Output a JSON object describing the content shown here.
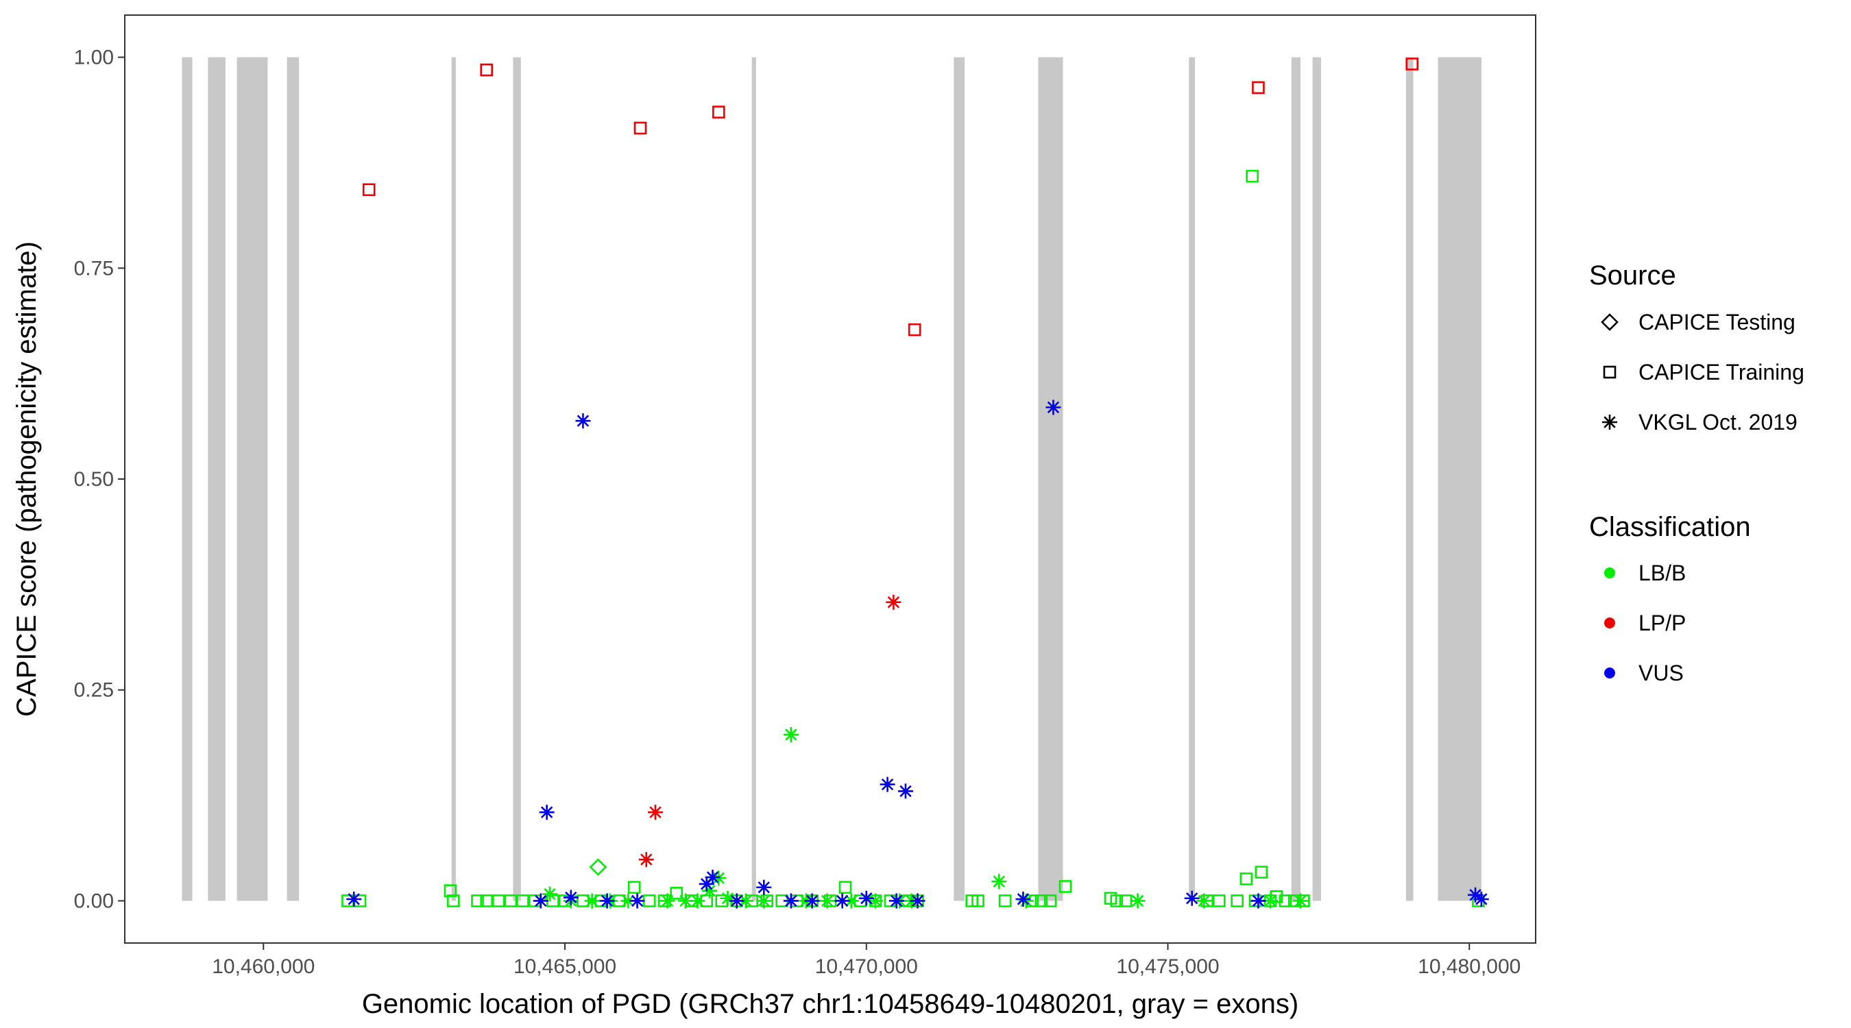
{
  "chart_data": {
    "type": "scatter",
    "xlabel": "Genomic location of PGD (GRCh37 chr1:10458649-10480201, gray = exons)",
    "ylabel": "CAPICE score (pathogenicity estimate)",
    "xlim": [
      10457700,
      10481100
    ],
    "ylim": [
      -0.05,
      1.05
    ],
    "x_ticks": [
      10460000,
      10465000,
      10470000,
      10475000,
      10480000
    ],
    "x_tick_labels": [
      "10,460,000",
      "10,465,000",
      "10,470,000",
      "10,475,000",
      "10,480,000"
    ],
    "y_ticks": [
      0,
      0.25,
      0.5,
      0.75,
      1.0
    ],
    "y_tick_labels": [
      "0.00",
      "0.25",
      "0.50",
      "0.75",
      "1.00"
    ],
    "grid": false,
    "legend_position": "right",
    "exons": [
      [
        10458649,
        10458820
      ],
      [
        10459080,
        10459370
      ],
      [
        10459560,
        10460070
      ],
      [
        10460390,
        10460590
      ],
      [
        10463120,
        10463190
      ],
      [
        10464140,
        10464270
      ],
      [
        10468100,
        10468170
      ],
      [
        10471450,
        10471630
      ],
      [
        10472850,
        10473260
      ],
      [
        10475350,
        10475450
      ],
      [
        10477050,
        10477200
      ],
      [
        10477400,
        10477540
      ],
      [
        10478950,
        10479070
      ],
      [
        10479480,
        10480201
      ]
    ],
    "colors": {
      "LB/B": "#00ee00",
      "LP/P": "#ee0000",
      "VUS": "#0000ee",
      "exon": "#c8c8c8"
    },
    "legends": {
      "source": {
        "title": "Source",
        "items": [
          {
            "label": "CAPICE Testing",
            "shape": "diamond"
          },
          {
            "label": "CAPICE Training",
            "shape": "square"
          },
          {
            "label": "VKGL Oct. 2019",
            "shape": "asterisk"
          }
        ]
      },
      "classification": {
        "title": "Classification",
        "items": [
          {
            "label": "LB/B",
            "color": "#00ee00"
          },
          {
            "label": "LP/P",
            "color": "#ee0000"
          },
          {
            "label": "VUS",
            "color": "#0000ee"
          }
        ]
      }
    },
    "series": [
      {
        "source": "CAPICE Training",
        "classification": "LP/P",
        "points": [
          [
            10461750,
            0.843
          ],
          [
            10463700,
            0.985
          ],
          [
            10466250,
            0.916
          ],
          [
            10467550,
            0.935
          ],
          [
            10470800,
            0.677
          ],
          [
            10476500,
            0.964
          ],
          [
            10479050,
            0.992
          ]
        ]
      },
      {
        "source": "CAPICE Training",
        "classification": "LB/B",
        "points": [
          [
            10461400,
            0.0
          ],
          [
            10461600,
            0.0
          ],
          [
            10463100,
            0.012
          ],
          [
            10463150,
            0.0
          ],
          [
            10463550,
            0.0
          ],
          [
            10463700,
            0.0
          ],
          [
            10463900,
            0.0
          ],
          [
            10464100,
            0.0
          ],
          [
            10464300,
            0.0
          ],
          [
            10464500,
            0.0
          ],
          [
            10464800,
            0.0
          ],
          [
            10465000,
            0.0
          ],
          [
            10465300,
            0.0
          ],
          [
            10465600,
            0.0
          ],
          [
            10465900,
            0.0
          ],
          [
            10466150,
            0.016
          ],
          [
            10466400,
            0.0
          ],
          [
            10466650,
            0.0
          ],
          [
            10466850,
            0.009
          ],
          [
            10467100,
            0.0
          ],
          [
            10467350,
            0.0
          ],
          [
            10467600,
            0.0
          ],
          [
            10467850,
            0.0
          ],
          [
            10468100,
            0.0
          ],
          [
            10468350,
            0.0
          ],
          [
            10468600,
            0.0
          ],
          [
            10468850,
            0.0
          ],
          [
            10469100,
            0.0
          ],
          [
            10469400,
            0.0
          ],
          [
            10469650,
            0.016
          ],
          [
            10469900,
            0.0
          ],
          [
            10470150,
            0.0
          ],
          [
            10470400,
            0.0
          ],
          [
            10470650,
            0.0
          ],
          [
            10470850,
            0.0
          ],
          [
            10471750,
            0.0
          ],
          [
            10471850,
            0.0
          ],
          [
            10472300,
            0.0
          ],
          [
            10472750,
            0.0
          ],
          [
            10472900,
            0.0
          ],
          [
            10473050,
            0.0
          ],
          [
            10473300,
            0.017
          ],
          [
            10474050,
            0.003
          ],
          [
            10474150,
            0.0
          ],
          [
            10474300,
            0.0
          ],
          [
            10475650,
            0.0
          ],
          [
            10475850,
            0.0
          ],
          [
            10476150,
            0.0
          ],
          [
            10476300,
            0.026
          ],
          [
            10476400,
            0.859
          ],
          [
            10476450,
            0.0
          ],
          [
            10476550,
            0.034
          ],
          [
            10476700,
            0.0
          ],
          [
            10476800,
            0.005
          ],
          [
            10476950,
            0.0
          ],
          [
            10477100,
            0.0
          ],
          [
            10477250,
            0.0
          ],
          [
            10480150,
            0.0
          ]
        ]
      },
      {
        "source": "CAPICE Testing",
        "classification": "LB/B",
        "points": [
          [
            10465550,
            0.04
          ]
        ]
      },
      {
        "source": "VKGL Oct. 2019",
        "classification": "LP/P",
        "points": [
          [
            10466350,
            0.049
          ],
          [
            10466500,
            0.105
          ],
          [
            10470450,
            0.354
          ]
        ]
      },
      {
        "source": "VKGL Oct. 2019",
        "classification": "LB/B",
        "points": [
          [
            10464750,
            0.008
          ],
          [
            10465100,
            0.0
          ],
          [
            10465450,
            0.0
          ],
          [
            10465750,
            0.0
          ],
          [
            10466050,
            0.0
          ],
          [
            10466700,
            0.0
          ],
          [
            10467000,
            0.0
          ],
          [
            10467200,
            0.0
          ],
          [
            10467400,
            0.012
          ],
          [
            10467550,
            0.027
          ],
          [
            10467700,
            0.003
          ],
          [
            10468000,
            0.0
          ],
          [
            10468300,
            0.0
          ],
          [
            10468750,
            0.197
          ],
          [
            10469000,
            0.0
          ],
          [
            10469350,
            0.0
          ],
          [
            10469750,
            0.0
          ],
          [
            10470150,
            0.0
          ],
          [
            10470550,
            0.0
          ],
          [
            10470750,
            0.0
          ],
          [
            10472200,
            0.023
          ],
          [
            10472650,
            0.0
          ],
          [
            10474500,
            0.0
          ],
          [
            10475600,
            0.0
          ],
          [
            10476700,
            0.0
          ],
          [
            10477200,
            0.0
          ]
        ]
      },
      {
        "source": "VKGL Oct. 2019",
        "classification": "VUS",
        "points": [
          [
            10461500,
            0.002
          ],
          [
            10464600,
            0.0
          ],
          [
            10464700,
            0.105
          ],
          [
            10465100,
            0.004
          ],
          [
            10465300,
            0.569
          ],
          [
            10465700,
            0.0
          ],
          [
            10466200,
            0.0
          ],
          [
            10467350,
            0.02
          ],
          [
            10467450,
            0.028
          ],
          [
            10467850,
            0.0
          ],
          [
            10468300,
            0.016
          ],
          [
            10468750,
            0.0
          ],
          [
            10469100,
            0.0
          ],
          [
            10469600,
            0.0
          ],
          [
            10470000,
            0.003
          ],
          [
            10470350,
            0.138
          ],
          [
            10470500,
            0.0
          ],
          [
            10470650,
            0.13
          ],
          [
            10470850,
            0.0
          ],
          [
            10472600,
            0.002
          ],
          [
            10473100,
            0.585
          ],
          [
            10475400,
            0.003
          ],
          [
            10476500,
            0.0
          ],
          [
            10480100,
            0.007
          ],
          [
            10480200,
            0.002
          ]
        ]
      }
    ]
  }
}
